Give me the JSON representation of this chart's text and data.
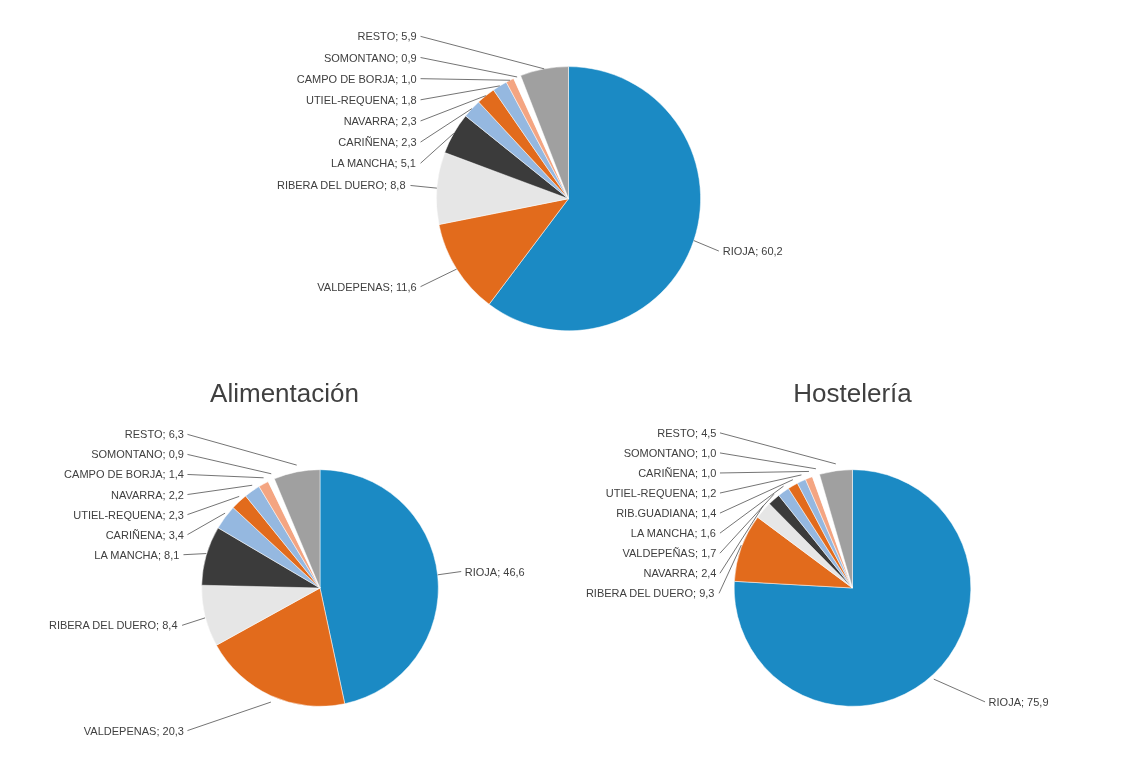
{
  "chart_data": [
    {
      "type": "pie",
      "categories": [
        "RIOJA",
        "VALDEPENAS",
        "RIBERA DEL DUERO",
        "LA MANCHA",
        "CARIÑENA",
        "NAVARRA",
        "UTIEL-REQUENA",
        "CAMPO DE BORJA",
        "SOMONTANO",
        "RESTO"
      ],
      "values": [
        60.2,
        11.6,
        8.8,
        5.1,
        2.3,
        2.3,
        1.8,
        1.0,
        0.9,
        5.9
      ],
      "value_labels": [
        "60,2",
        "11,6",
        "8,8",
        "5,1",
        "2,3",
        "2,3",
        "1,8",
        "1,0",
        "0,9",
        "5,9"
      ],
      "colors": [
        "#1b8ac4",
        "#e26b1c",
        "#e6e6e6",
        "#3b3b3b",
        "#95b8e0",
        "#e26b1c",
        "#95b8e0",
        "#f4a582",
        "#ffffff",
        "#a0a0a0"
      ]
    },
    {
      "type": "pie",
      "title": "Alimentación",
      "categories": [
        "RIOJA",
        "VALDEPENAS",
        "RIBERA DEL DUERO",
        "LA MANCHA",
        "CARIÑENA",
        "UTIEL-REQUENA",
        "NAVARRA",
        "CAMPO DE BORJA",
        "SOMONTANO",
        "RESTO"
      ],
      "values": [
        46.6,
        20.3,
        8.4,
        8.1,
        3.4,
        2.3,
        2.2,
        1.4,
        0.9,
        6.3
      ],
      "value_labels": [
        "46,6",
        "20,3",
        "8,4",
        "8,1",
        "3,4",
        "2,3",
        "2,2",
        "1,4",
        "0,9",
        "6,3"
      ],
      "colors": [
        "#1b8ac4",
        "#e26b1c",
        "#e6e6e6",
        "#3b3b3b",
        "#95b8e0",
        "#e26b1c",
        "#95b8e0",
        "#f4a582",
        "#ffffff",
        "#a0a0a0"
      ]
    },
    {
      "type": "pie",
      "title": "Hostelería",
      "categories": [
        "RIOJA",
        "RIBERA DEL DUERO",
        "NAVARRA",
        "VALDEPEÑAS",
        "LA MANCHA",
        "RIB.GUADIANA",
        "UTIEL-REQUENA",
        "CARIÑENA",
        "SOMONTANO",
        "RESTO"
      ],
      "values": [
        75.9,
        9.3,
        2.4,
        1.7,
        1.6,
        1.4,
        1.2,
        1.0,
        1.0,
        4.5
      ],
      "value_labels": [
        "75,9",
        "9,3",
        "2,4",
        "1,7",
        "1,6",
        "1,4",
        "1,2",
        "1,0",
        "1,0",
        "4,5"
      ],
      "colors": [
        "#1b8ac4",
        "#e26b1c",
        "#e6e6e6",
        "#3b3b3b",
        "#95b8e0",
        "#e26b1c",
        "#95b8e0",
        "#f4a582",
        "#ffffff",
        "#a0a0a0"
      ]
    }
  ]
}
